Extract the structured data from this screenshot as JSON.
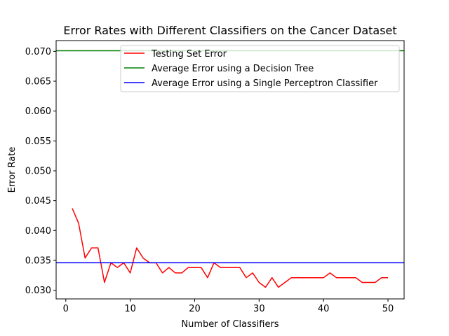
{
  "chart_data": {
    "type": "line",
    "title": "Error Rates with Different Classifiers on the Cancer Dataset",
    "xlabel": "Number of Classifiers",
    "ylabel": "Error Rate",
    "xlim": [
      -1.5,
      52.5
    ],
    "ylim": [
      0.02855,
      0.0718
    ],
    "xticks": [
      0,
      10,
      20,
      30,
      40,
      50
    ],
    "yticks": [
      0.03,
      0.035,
      0.04,
      0.045,
      0.05,
      0.055,
      0.06,
      0.065,
      0.07
    ],
    "yticks_labels": [
      "0.030",
      "0.035",
      "0.040",
      "0.045",
      "0.050",
      "0.055",
      "0.060",
      "0.065",
      "0.070"
    ],
    "grid": false,
    "legend_position": "top-right",
    "series": [
      {
        "name": "Testing Set Error",
        "color": "#ff0000",
        "kind": "line",
        "x": [
          1,
          2,
          3,
          4,
          5,
          6,
          7,
          8,
          9,
          10,
          11,
          12,
          13,
          14,
          15,
          16,
          17,
          18,
          19,
          20,
          21,
          22,
          23,
          24,
          25,
          26,
          27,
          28,
          29,
          30,
          31,
          32,
          33,
          34,
          35,
          36,
          37,
          38,
          39,
          40,
          41,
          42,
          43,
          44,
          45,
          46,
          47,
          48,
          49,
          50
        ],
        "y": [
          0.0437,
          0.0412,
          0.0354,
          0.0371,
          0.0371,
          0.0313,
          0.0346,
          0.0338,
          0.0346,
          0.0329,
          0.0371,
          0.0354,
          0.0346,
          0.0346,
          0.0329,
          0.0338,
          0.0329,
          0.0329,
          0.0338,
          0.0338,
          0.0338,
          0.0321,
          0.0346,
          0.0338,
          0.0338,
          0.0338,
          0.0338,
          0.0321,
          0.0329,
          0.0313,
          0.0305,
          0.0321,
          0.0305,
          0.0313,
          0.0321,
          0.0321,
          0.0321,
          0.0321,
          0.0321,
          0.0321,
          0.0329,
          0.0321,
          0.0321,
          0.0321,
          0.0321,
          0.0313,
          0.0313,
          0.0313,
          0.0321,
          0.0321
        ]
      },
      {
        "name": "Average Error using a Decision Tree",
        "color": "#008000",
        "kind": "hline",
        "y": 0.0701
      },
      {
        "name": "Average Error using a Single Perceptron Classifier",
        "color": "#0000ff",
        "kind": "hline",
        "y": 0.0346
      }
    ]
  }
}
